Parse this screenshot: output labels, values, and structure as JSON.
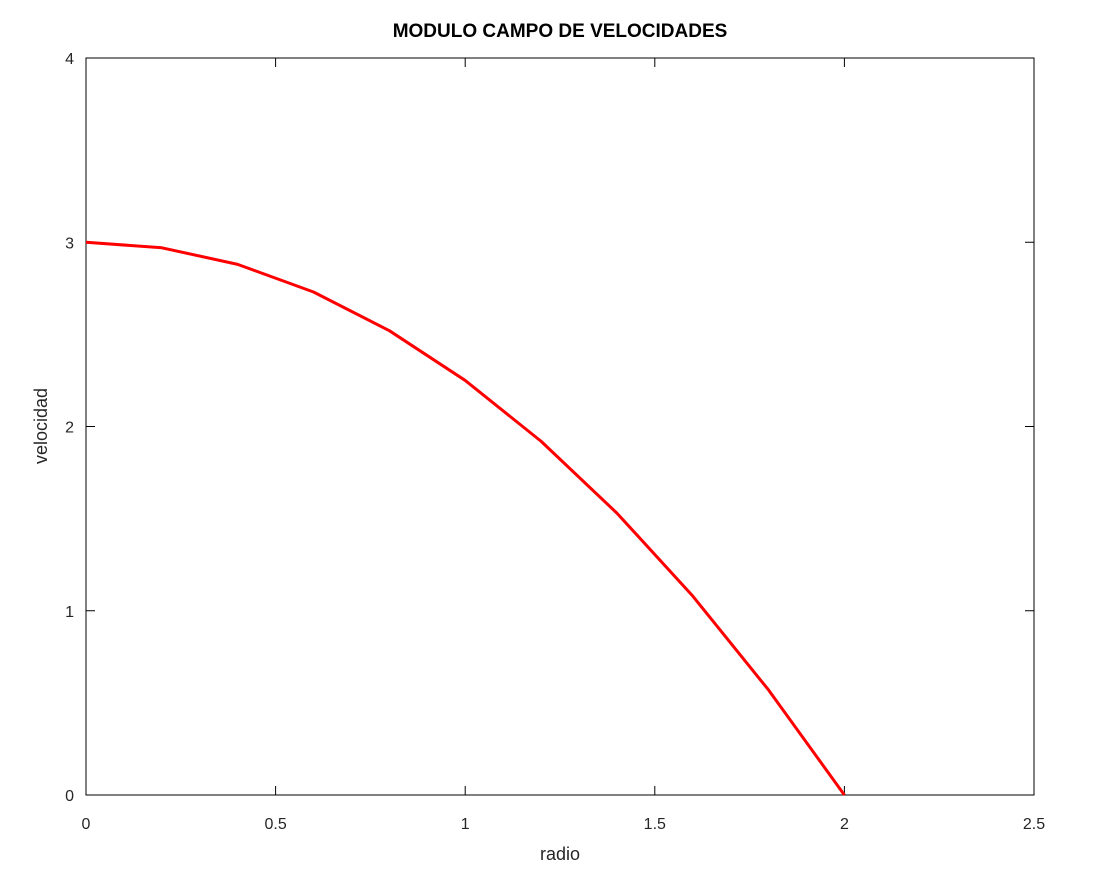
{
  "chart_data": {
    "type": "line",
    "title": "MODULO CAMPO DE VELOCIDADES",
    "xlabel": "radio",
    "ylabel": "velocidad",
    "xlim": [
      0,
      2.5
    ],
    "ylim": [
      0,
      4
    ],
    "xticks": [
      0,
      0.5,
      1,
      1.5,
      2,
      2.5
    ],
    "xtick_labels": [
      "0",
      "0.5",
      "1",
      "1.5",
      "2",
      "2.5"
    ],
    "yticks": [
      0,
      1,
      2,
      3,
      4
    ],
    "ytick_labels": [
      "0",
      "1",
      "2",
      "3",
      "4"
    ],
    "grid": false,
    "series": [
      {
        "color": "#ff0000",
        "x": [
          0,
          0.2,
          0.4,
          0.6,
          0.8,
          1.0,
          1.2,
          1.4,
          1.6,
          1.8,
          2.0
        ],
        "y": [
          3.0,
          2.97,
          2.88,
          2.73,
          2.52,
          2.25,
          1.92,
          1.53,
          1.08,
          0.57,
          0.0
        ]
      }
    ]
  }
}
